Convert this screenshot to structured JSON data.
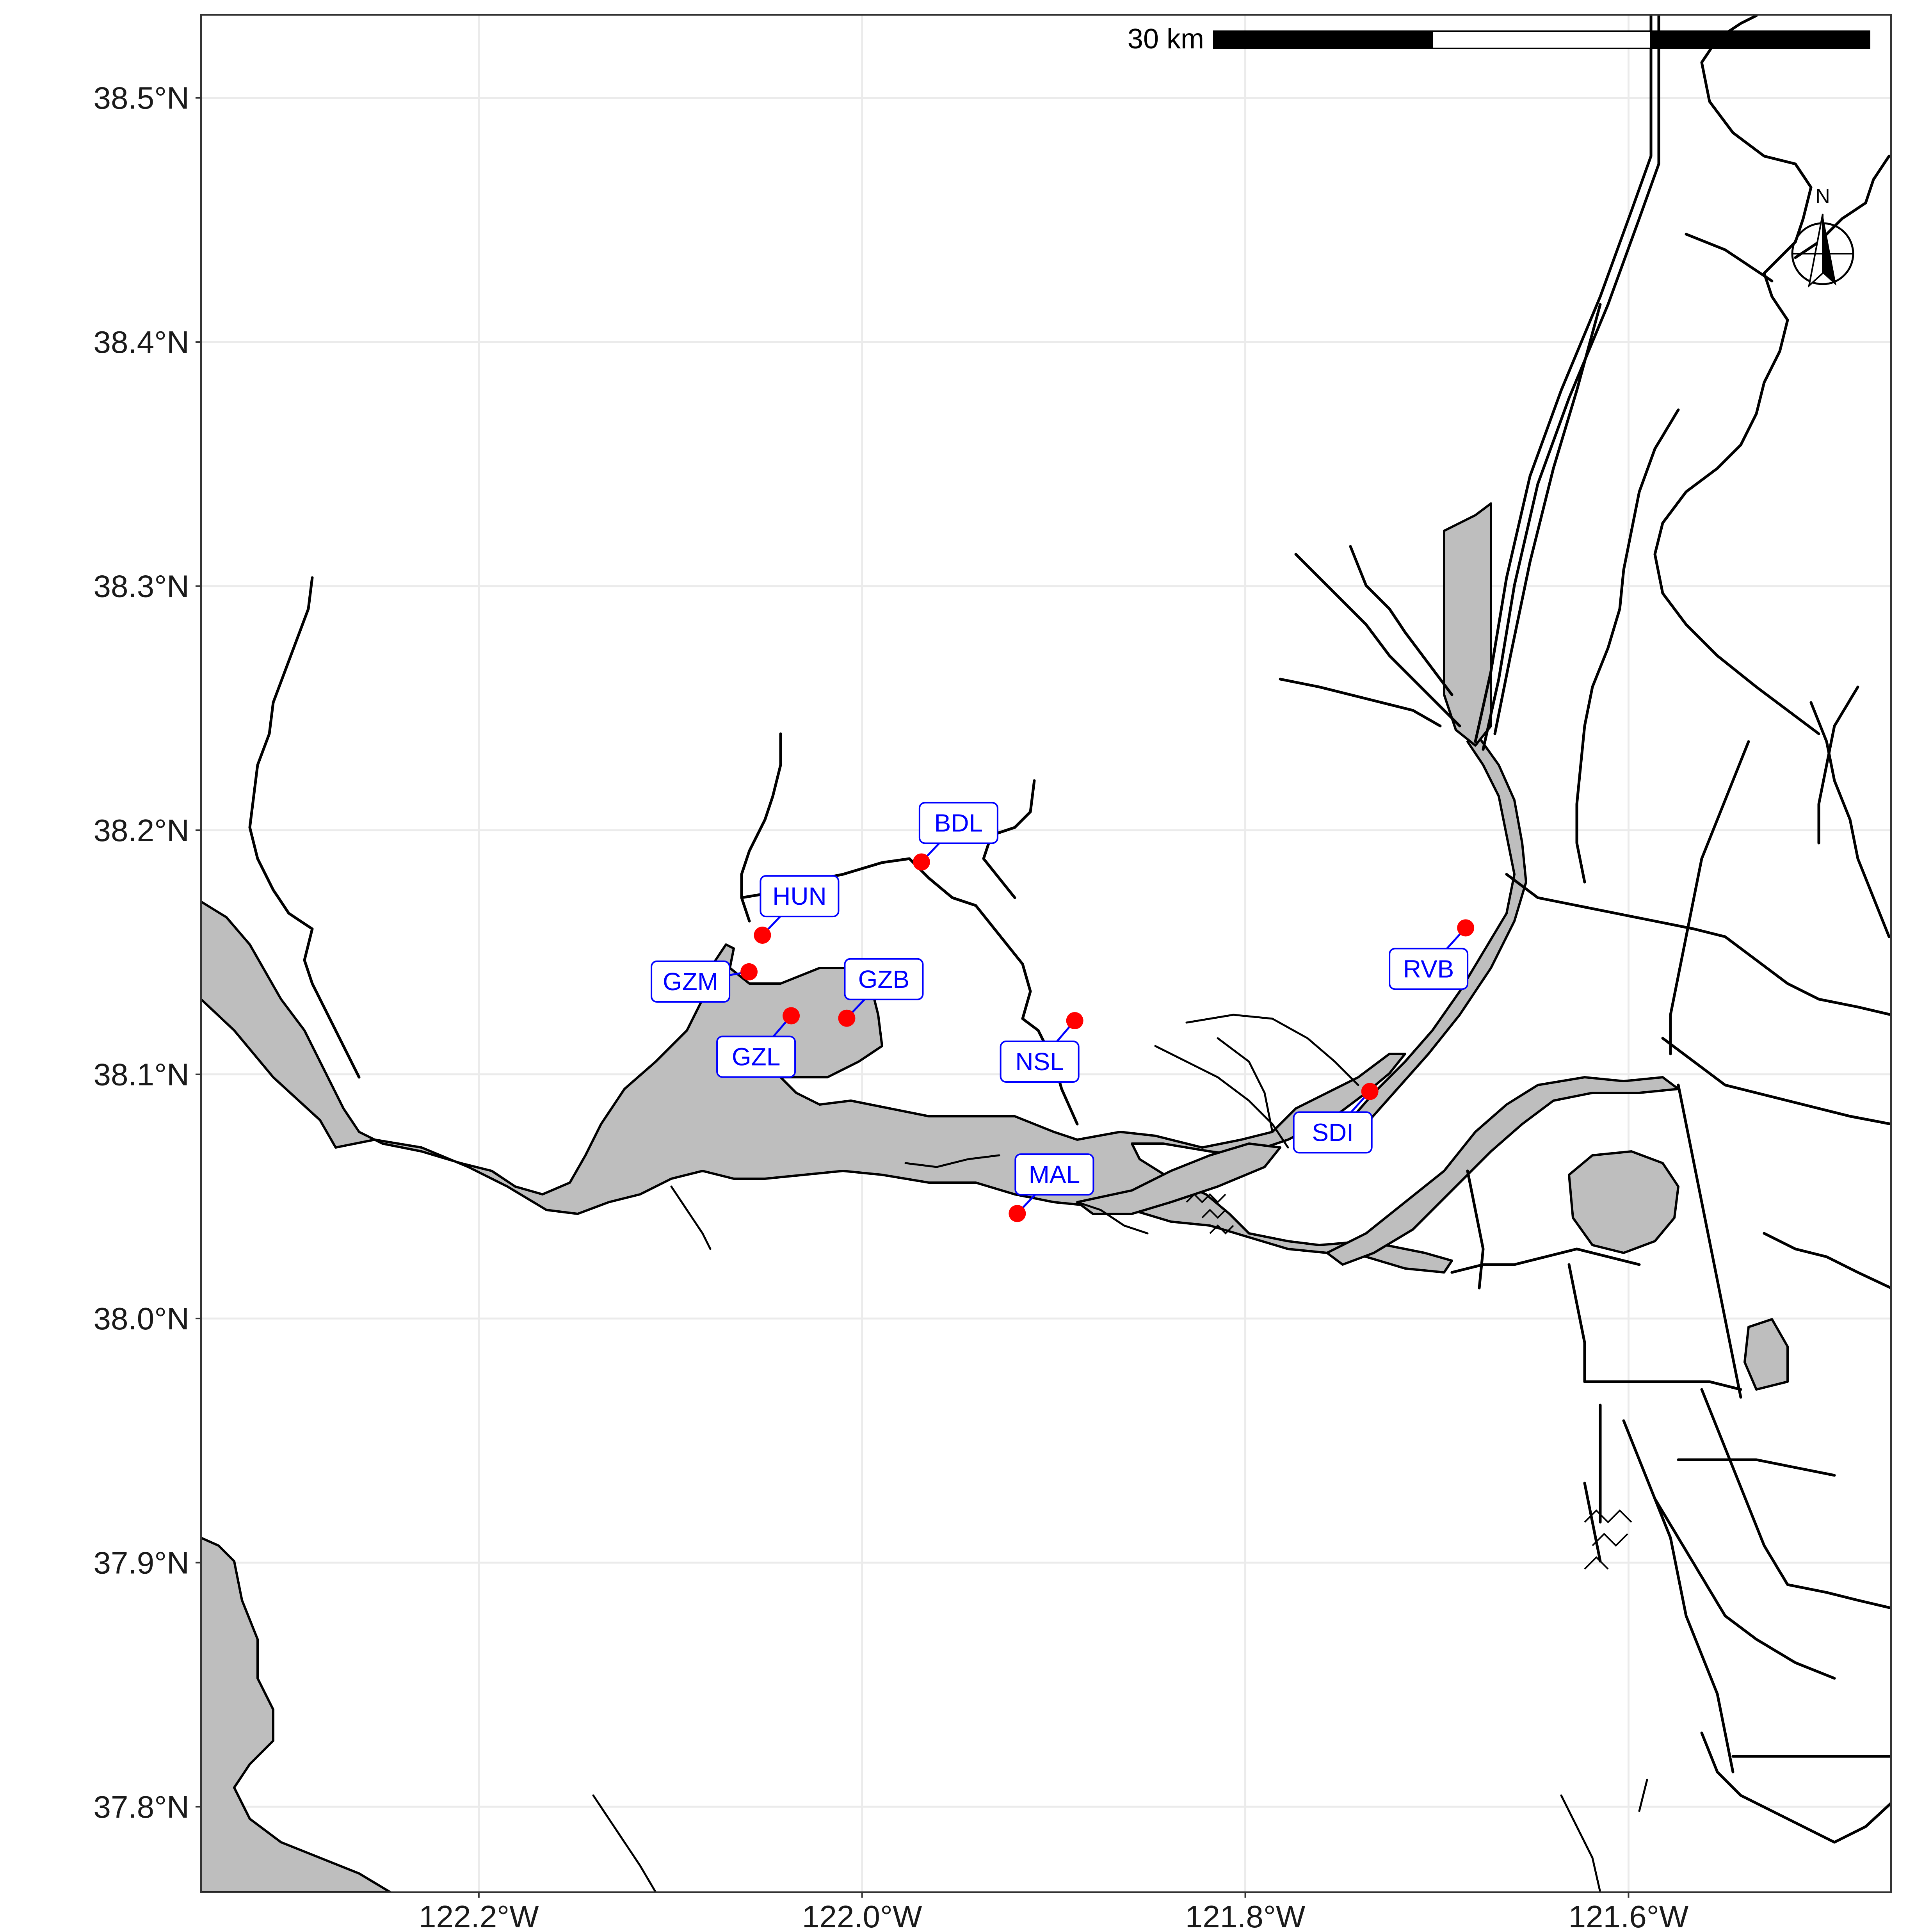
{
  "map": {
    "lon_range": [
      -122.345,
      -121.463
    ],
    "lat_range": [
      37.765,
      38.534
    ],
    "lon_ticks": [
      {
        "value": -122.2,
        "label": "122.2°W"
      },
      {
        "value": -122.0,
        "label": "122.0°W"
      },
      {
        "value": -121.8,
        "label": "121.8°W"
      },
      {
        "value": -121.6,
        "label": "121.6°W"
      }
    ],
    "lat_ticks": [
      {
        "value": 38.5,
        "label": "38.5°N"
      },
      {
        "value": 38.4,
        "label": "38.4°N"
      },
      {
        "value": 38.3,
        "label": "38.3°N"
      },
      {
        "value": 38.2,
        "label": "38.2°N"
      },
      {
        "value": 38.1,
        "label": "38.1°N"
      },
      {
        "value": 38.0,
        "label": "38.0°N"
      },
      {
        "value": 37.9,
        "label": "37.9°N"
      },
      {
        "value": 37.8,
        "label": "37.8°N"
      }
    ],
    "scale_bar": {
      "label": "30 km"
    },
    "north_arrow": {
      "label": "N"
    },
    "colors": {
      "station": "#ff0000",
      "label": "#0000ff",
      "water": "#bebebe",
      "grid": "#ebebeb"
    }
  },
  "stations": [
    {
      "id": "BDL",
      "lon": -121.969,
      "lat": 38.187
    },
    {
      "id": "HUN",
      "lon": -122.052,
      "lat": 38.157
    },
    {
      "id": "GZM",
      "lon": -122.059,
      "lat": 38.142
    },
    {
      "id": "GZL",
      "lon": -122.037,
      "lat": 38.124
    },
    {
      "id": "GZB",
      "lon": -122.008,
      "lat": 38.123
    },
    {
      "id": "NSL",
      "lon": -121.889,
      "lat": 38.122
    },
    {
      "id": "MAL",
      "lon": -121.919,
      "lat": 38.043
    },
    {
      "id": "SDI",
      "lon": -121.735,
      "lat": 38.093
    },
    {
      "id": "RVB",
      "lon": -121.685,
      "lat": 38.16
    }
  ]
}
